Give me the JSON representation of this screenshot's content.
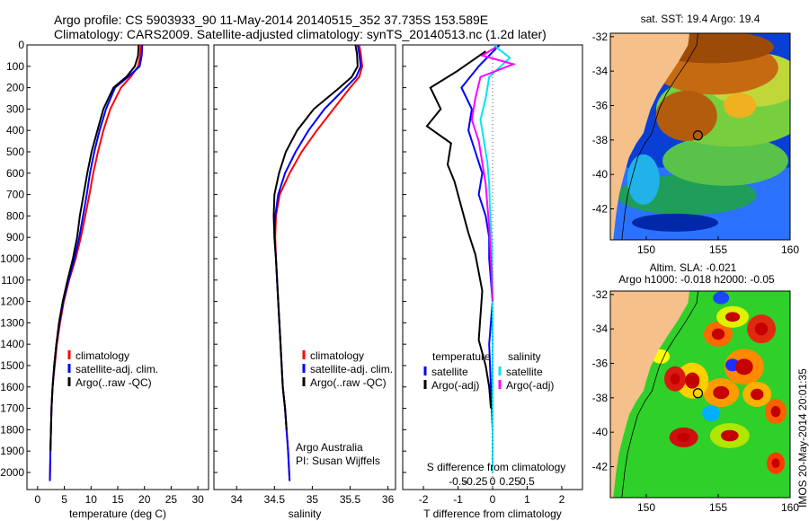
{
  "header": {
    "line1": "Argo profile: CS 5903933_90 11-May-2014 20140515_352 37.735S 153.589E",
    "line2": "Climatology: CARS2009. Satellite-adjusted climatology: synTS_20140513.nc (1.2d later)"
  },
  "timestamp": "IMOS 20-May-2014 20:01:35",
  "colors": {
    "climatology": "#ff0000",
    "satellite": "#0000ff",
    "argo": "#000000",
    "salinity_satellite": "#00e5ee",
    "salinity_argo": "#ff00ff",
    "land": "#f5c08a"
  },
  "chart_data": [
    {
      "type": "line",
      "name": "temperature_profile",
      "xlabel": "temperature (deg C)",
      "xlim": [
        -2,
        32
      ],
      "ylim": [
        2080,
        0
      ],
      "xticks": [
        0,
        5,
        10,
        15,
        20,
        25,
        30
      ],
      "yticks": [
        0,
        100,
        200,
        300,
        400,
        500,
        600,
        700,
        800,
        900,
        1000,
        1100,
        1200,
        1300,
        1400,
        1500,
        1600,
        1700,
        1800,
        1900,
        2000
      ],
      "legend": [
        "climatology",
        "satellite-adj. clim.",
        "Argo(..raw -QC)"
      ],
      "series": [
        {
          "name": "climatology",
          "color": "#ff0000",
          "x": [
            19.3,
            19.2,
            18.8,
            17.4,
            15.6,
            13.6,
            12.3,
            11.3,
            10.4,
            9.7,
            8.9,
            8.1,
            7.1,
            5.9,
            4.9,
            4.2,
            3.6,
            3.2,
            2.8,
            2.6,
            2.4,
            2.3
          ],
          "y": [
            0,
            50,
            100,
            150,
            200,
            300,
            400,
            500,
            600,
            700,
            800,
            900,
            1000,
            1100,
            1200,
            1300,
            1400,
            1500,
            1600,
            1700,
            1900,
            2040
          ]
        },
        {
          "name": "satellite-adj. clim.",
          "color": "#0000ff",
          "x": [
            19.6,
            19.5,
            19.1,
            16.9,
            14.5,
            12.8,
            11.6,
            10.6,
            9.8,
            9.2,
            8.5,
            7.8,
            6.9,
            5.8,
            4.8,
            4.1,
            3.5,
            3.1,
            2.8,
            2.6,
            2.4,
            2.3
          ],
          "y": [
            0,
            50,
            100,
            150,
            200,
            300,
            400,
            500,
            600,
            700,
            800,
            900,
            1000,
            1100,
            1200,
            1300,
            1400,
            1500,
            1600,
            1700,
            1900,
            2040
          ]
        },
        {
          "name": "Argo(..raw -QC)",
          "color": "#000000",
          "x": [
            18.9,
            18.8,
            18.2,
            16.6,
            14.2,
            12.3,
            11.2,
            10.1,
            9.3,
            8.6,
            7.9,
            7.4,
            6.6,
            5.6,
            4.7,
            4.0,
            3.5,
            3.1,
            2.8,
            2.6,
            2.4
          ],
          "y": [
            0,
            50,
            100,
            150,
            200,
            300,
            400,
            500,
            600,
            700,
            800,
            900,
            1000,
            1100,
            1200,
            1300,
            1400,
            1500,
            1600,
            1700,
            1900
          ]
        }
      ]
    },
    {
      "type": "line",
      "name": "salinity_profile",
      "xlabel": "salinity",
      "xlim": [
        33.7,
        36.1
      ],
      "ylim": [
        2080,
        0
      ],
      "xticks": [
        34,
        34.5,
        35,
        35.5,
        36
      ],
      "legend": [
        "climatology",
        "satellite-adj. clim.",
        "Argo(..raw -QC)"
      ],
      "annotation": [
        "Argo Australia",
        "PI: Susan Wijffels"
      ],
      "series": [
        {
          "name": "climatology",
          "color": "#ff0000",
          "x": [
            35.62,
            35.64,
            35.66,
            35.62,
            35.5,
            35.28,
            35.06,
            34.86,
            34.7,
            34.57,
            34.52,
            34.51,
            34.52,
            34.55,
            34.58,
            34.61,
            34.64,
            34.66,
            34.68,
            34.7
          ],
          "y": [
            0,
            40,
            100,
            150,
            200,
            300,
            400,
            500,
            600,
            700,
            800,
            900,
            1000,
            1200,
            1400,
            1600,
            1700,
            1800,
            1900,
            2040
          ]
        },
        {
          "name": "satellite-adj. clim.",
          "color": "#0000ff",
          "x": [
            35.6,
            35.62,
            35.64,
            35.58,
            35.44,
            35.16,
            34.95,
            34.78,
            34.64,
            34.55,
            34.51,
            34.5,
            34.52,
            34.55,
            34.58,
            34.61,
            34.64,
            34.66,
            34.68,
            34.7
          ],
          "y": [
            0,
            40,
            100,
            150,
            200,
            300,
            400,
            500,
            600,
            700,
            800,
            900,
            1000,
            1200,
            1400,
            1600,
            1700,
            1800,
            1900,
            2040
          ]
        },
        {
          "name": "Argo(..raw -QC)",
          "color": "#000000",
          "x": [
            35.57,
            35.59,
            35.6,
            35.52,
            35.36,
            35.02,
            34.8,
            34.65,
            34.56,
            34.5,
            34.49,
            34.5,
            34.52,
            34.55,
            34.58,
            34.61,
            34.64,
            34.66
          ],
          "y": [
            0,
            40,
            100,
            150,
            200,
            300,
            400,
            500,
            600,
            700,
            800,
            900,
            1000,
            1200,
            1400,
            1600,
            1700,
            1800
          ]
        }
      ]
    },
    {
      "type": "line",
      "name": "difference_profile",
      "xlabel": "T difference from climatology",
      "xlabel_top": "S difference from climatology",
      "xlim": [
        -2.6,
        2.6
      ],
      "ylim": [
        2080,
        0
      ],
      "xticks": [
        -2,
        -1,
        0,
        1,
        2
      ],
      "xticks_s": [
        "-0.5",
        "-0.25",
        "0",
        "0.25",
        "0.5"
      ],
      "legend_headers": [
        "temperature",
        "salinity"
      ],
      "legend": [
        "satellite",
        "Argo(-adj)",
        "satellite",
        "Argo(-adj)"
      ],
      "series": [
        {
          "name": "temperature satellite",
          "color": "#0000ff",
          "x": [
            0.2,
            -0.4,
            -0.9,
            -0.6,
            -0.7,
            -0.5,
            -0.3,
            -0.4,
            -0.2,
            -0.1,
            -0.1,
            0.0,
            -0.1,
            -0.05,
            0.0,
            0.0
          ],
          "y": [
            0,
            100,
            200,
            300,
            400,
            500,
            600,
            700,
            800,
            900,
            1000,
            1200,
            1400,
            1600,
            1800,
            2000
          ]
        },
        {
          "name": "temperature Argo(-adj)",
          "color": "#000000",
          "x": [
            -0.2,
            -1.0,
            -1.8,
            -1.5,
            -1.9,
            -1.2,
            -1.3,
            -1.1,
            -0.9,
            -0.7,
            -0.5,
            -0.3,
            -0.4,
            -0.2,
            -0.1,
            -0.05
          ],
          "y": [
            30,
            120,
            200,
            300,
            380,
            460,
            560,
            640,
            760,
            880,
            980,
            1150,
            1380,
            1500,
            1600,
            1700
          ]
        },
        {
          "name": "salinity satellite",
          "color": "#00e5ee",
          "x": [
            0.02,
            0.5,
            -0.1,
            -0.2,
            -0.35,
            -0.25,
            -0.15,
            -0.1,
            -0.08,
            -0.05,
            -0.02,
            0.0,
            0.0,
            0.0
          ],
          "y": [
            0,
            60,
            150,
            250,
            350,
            450,
            550,
            650,
            750,
            850,
            950,
            1200,
            1600,
            2000
          ]
        },
        {
          "name": "salinity Argo(-adj)",
          "color": "#ff00ff",
          "x": [
            0.1,
            -0.3,
            0.6,
            -0.35,
            -0.5,
            -0.6,
            -0.4,
            -0.3,
            -0.2,
            -0.15,
            -0.1,
            -0.05,
            0.0
          ],
          "y": [
            10,
            50,
            90,
            150,
            250,
            350,
            450,
            550,
            650,
            750,
            850,
            1000,
            1200
          ]
        }
      ]
    },
    {
      "type": "heatmap",
      "name": "sst_map",
      "title": "sat. SST: 19.4  Argo: 19.4",
      "xlim": [
        147.5,
        160
      ],
      "ylim": [
        -43.8,
        -31.8
      ],
      "xticks": [
        150,
        155,
        160
      ],
      "yticks": [
        -32,
        -34,
        -36,
        -38,
        -40,
        -42
      ],
      "marker": {
        "lon": 153.589,
        "lat": -37.735
      }
    },
    {
      "type": "heatmap",
      "name": "sla_map",
      "title": "Altim. SLA: -0.021",
      "subtitle": "Argo h1000: -0.018 h2000: -0.05",
      "xlim": [
        147.5,
        160
      ],
      "ylim": [
        -43.8,
        -31.8
      ],
      "xticks": [
        150,
        155,
        160
      ],
      "yticks": [
        -32,
        -34,
        -36,
        -38,
        -40,
        -42
      ],
      "marker": {
        "lon": 153.589,
        "lat": -37.735
      }
    }
  ]
}
